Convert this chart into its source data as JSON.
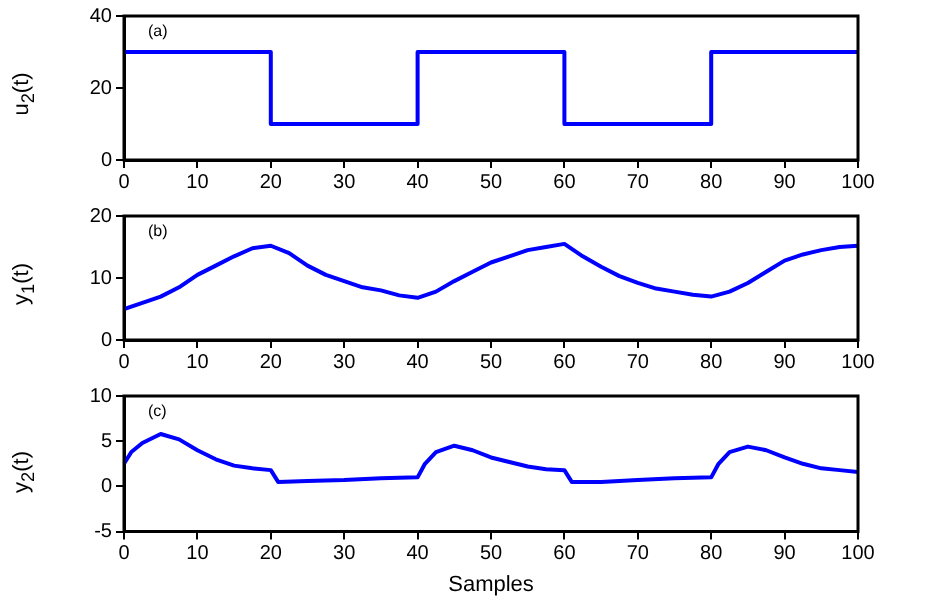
{
  "chart_data": [
    {
      "type": "step",
      "ylabel": "u$_{2}$(t)",
      "annotations": [
        "(a)"
      ],
      "x": [
        0,
        20,
        40,
        60,
        80,
        100
      ],
      "series": [
        {
          "color": "#0000ff",
          "values": [
            30,
            10,
            30,
            10,
            30,
            30
          ]
        }
      ],
      "xlim": [
        0,
        100
      ],
      "xticks": [
        0,
        10,
        20,
        30,
        40,
        50,
        60,
        70,
        80,
        90,
        100
      ],
      "ylim": [
        0,
        40
      ],
      "yticks": [
        0,
        20,
        40
      ],
      "grid": false,
      "legend": false,
      "marker": "none",
      "line_style": "solid"
    },
    {
      "type": "line",
      "ylabel": "y$_{1}$(t)",
      "annotations": [
        "(b)"
      ],
      "x": [
        0,
        2.5,
        5,
        7.5,
        10,
        12.5,
        15,
        17.5,
        20,
        22.5,
        25,
        27.5,
        30,
        32.5,
        35,
        37.5,
        40,
        42.5,
        45,
        47.5,
        50,
        52.5,
        55,
        57.5,
        60,
        62.5,
        65,
        67.5,
        70,
        72.5,
        75,
        77.5,
        80,
        82.5,
        85,
        87.5,
        90,
        92.5,
        95,
        97.5,
        100
      ],
      "series": [
        {
          "color": "#0000ff",
          "values": [
            5,
            6,
            7,
            8.5,
            10.5,
            12,
            13.5,
            14.8,
            15.2,
            14,
            12,
            10.5,
            9.5,
            8.5,
            8,
            7.2,
            6.8,
            7.8,
            9.5,
            11,
            12.5,
            13.5,
            14.5,
            15,
            15.5,
            13.5,
            11.8,
            10.3,
            9.2,
            8.3,
            7.8,
            7.3,
            7,
            7.8,
            9.2,
            11,
            12.8,
            13.8,
            14.5,
            15,
            15.2
          ]
        }
      ],
      "xlim": [
        0,
        100
      ],
      "xticks": [
        0,
        10,
        20,
        30,
        40,
        50,
        60,
        70,
        80,
        90,
        100
      ],
      "ylim": [
        0,
        20
      ],
      "yticks": [
        0,
        10,
        20
      ],
      "grid": false,
      "legend": false,
      "marker": "none",
      "line_style": "solid"
    },
    {
      "type": "line",
      "xlabel": "Samples",
      "ylabel": "y$_{2}$(t)",
      "annotations": [
        "(c)"
      ],
      "x": [
        0,
        1,
        2.5,
        5,
        7.5,
        10,
        12.5,
        15,
        17.5,
        20,
        21,
        25,
        30,
        35,
        40,
        41,
        42.5,
        45,
        47.5,
        50,
        52.5,
        55,
        57.5,
        60,
        61,
        65,
        70,
        75,
        80,
        81,
        82.5,
        85,
        87.5,
        90,
        92.5,
        95,
        97.5,
        100
      ],
      "series": [
        {
          "color": "#0000ff",
          "values": [
            2.5,
            3.8,
            4.8,
            5.8,
            5.2,
            4,
            3,
            2.3,
            2,
            1.8,
            0.5,
            0.6,
            0.7,
            0.9,
            1,
            2.5,
            3.8,
            4.5,
            4,
            3.2,
            2.7,
            2.2,
            1.9,
            1.8,
            0.5,
            0.5,
            0.7,
            0.9,
            1,
            2.5,
            3.8,
            4.4,
            4,
            3.2,
            2.5,
            2,
            1.8,
            1.6
          ]
        }
      ],
      "xlim": [
        0,
        100
      ],
      "xticks": [
        0,
        10,
        20,
        30,
        40,
        50,
        60,
        70,
        80,
        90,
        100
      ],
      "ylim": [
        -5,
        10
      ],
      "yticks": [
        -5,
        0,
        5,
        10
      ],
      "grid": false,
      "legend": false,
      "marker": "none",
      "line_style": "solid"
    }
  ]
}
